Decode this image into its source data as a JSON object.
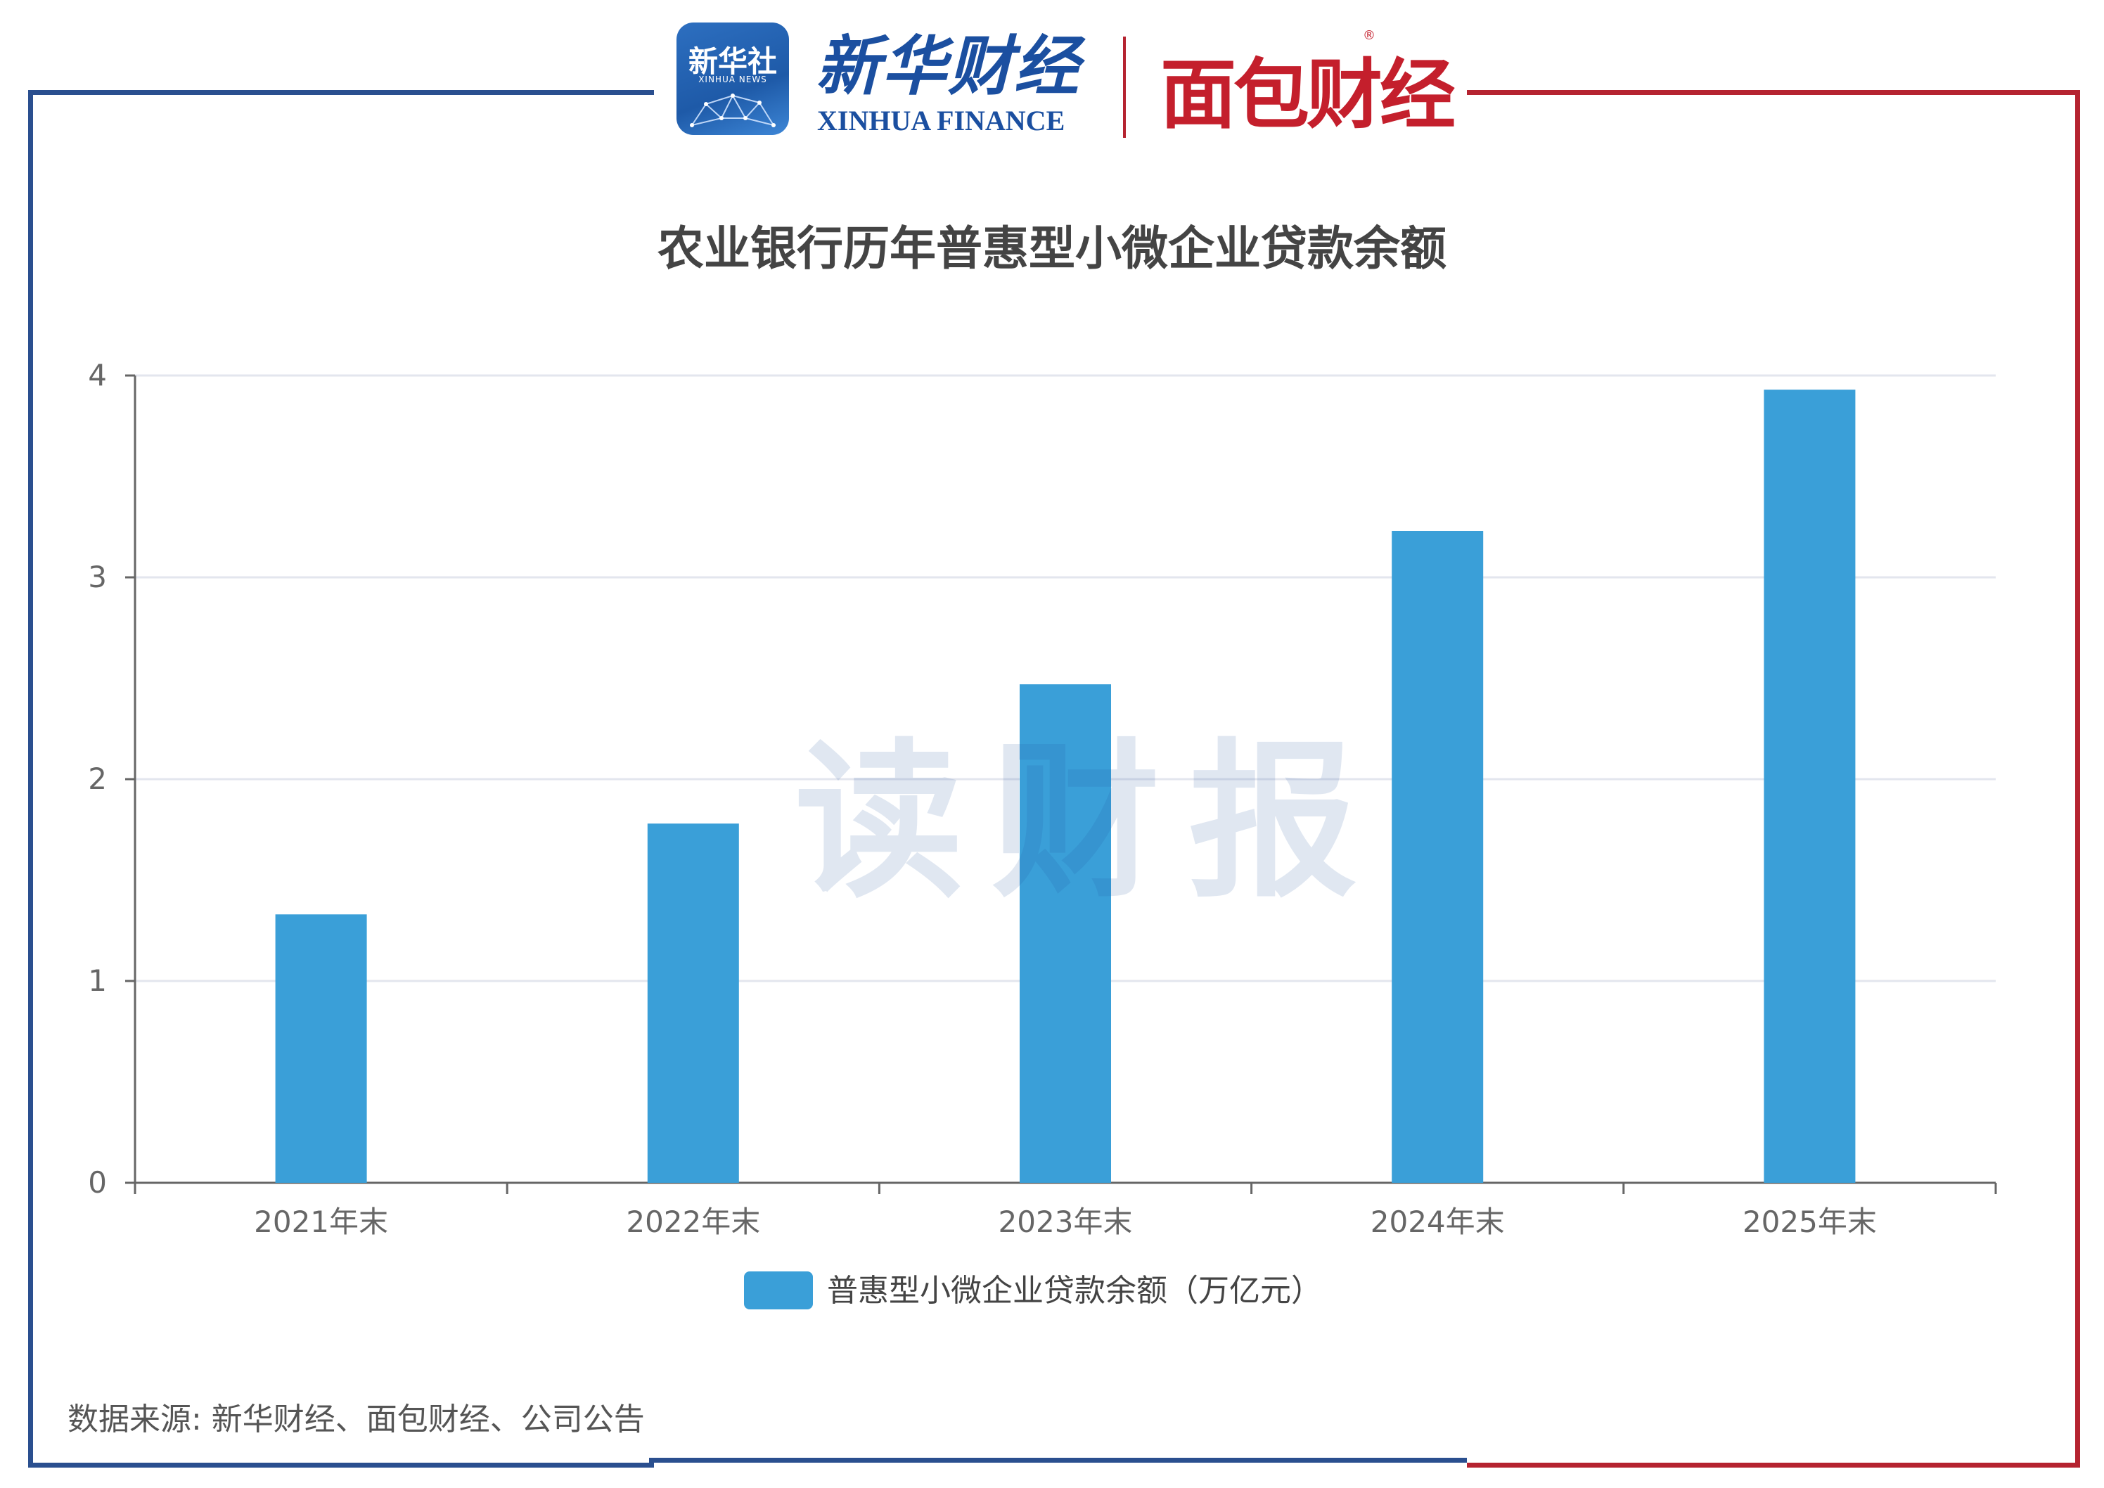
{
  "header": {
    "xinhua_news_cn": "新华社",
    "xinhua_news_en": "XINHUA NEWS",
    "xinhua_finance_cn": "新华财经",
    "xinhua_finance_en": "XINHUA FINANCE",
    "mianbao_cn": "面包财经",
    "registered_mark": "®"
  },
  "watermark": "读财报",
  "source": "数据来源: 新华财经、面包财经、公司公告",
  "colors": {
    "bar": "#3a9fd8",
    "frame_left": "#2a4f8f",
    "frame_right": "#b52330",
    "grid": "#e3e6ee",
    "axis": "#666666"
  },
  "chart_data": {
    "type": "bar",
    "title": "农业银行历年普惠型小微企业贷款余额",
    "categories": [
      "2021年末",
      "2022年末",
      "2023年末",
      "2024年末",
      "2025年末"
    ],
    "series": [
      {
        "name": "普惠型小微企业贷款余额（万亿元）",
        "values": [
          1.33,
          1.78,
          2.47,
          3.23,
          3.93
        ]
      }
    ],
    "ylim": [
      0,
      4
    ],
    "yticks": [
      0,
      1,
      2,
      3,
      4
    ],
    "grid": true,
    "legend": "bottom-center"
  }
}
